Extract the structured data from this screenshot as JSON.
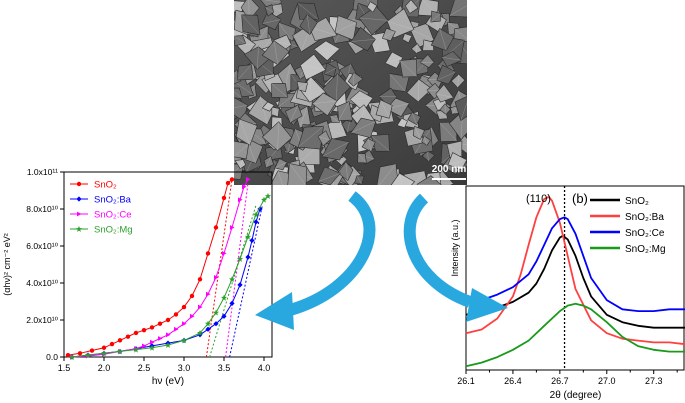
{
  "sem_image": {
    "scale_bar_label": "200 nm"
  },
  "chart_data": [
    {
      "type": "scatter",
      "panel": "tauc-plot",
      "xlabel": "hν (eV)",
      "ylabel": "(αhν)² cm⁻² eV²",
      "xlim": [
        1.5,
        4.1
      ],
      "ylim": [
        0,
        100000000000.0
      ],
      "x_ticks": [
        "1.5",
        "2.0",
        "2.5",
        "3.0",
        "3.5",
        "4.0"
      ],
      "y_ticks": [
        "0.0",
        "2.0x10¹⁰",
        "4.0x10¹⁰",
        "6.0x10¹⁰",
        "8.0x10¹⁰",
        "1.0x10¹¹"
      ],
      "legend_position": "top-left",
      "series": [
        {
          "name": "SnO₂",
          "color": "#ff0000",
          "marker": "circle",
          "x": [
            1.55,
            1.7,
            1.85,
            2.0,
            2.1,
            2.2,
            2.3,
            2.4,
            2.5,
            2.6,
            2.7,
            2.8,
            2.9,
            3.0,
            3.1,
            3.2,
            3.3,
            3.4,
            3.5,
            3.55,
            3.6
          ],
          "y": [
            1000000000.0,
            2000000000.0,
            3500000000.0,
            5000000000.0,
            7000000000.0,
            9000000000.0,
            11000000000.0,
            13000000000.0,
            14500000000.0,
            16000000000.0,
            18000000000.0,
            20000000000.0,
            23000000000.0,
            27000000000.0,
            33000000000.0,
            42000000000.0,
            56000000000.0,
            70000000000.0,
            86000000000.0,
            94000000000.0,
            96000000000.0
          ],
          "tangent": {
            "x": [
              3.28,
              3.6
            ],
            "y": [
              0,
              96000000000.0
            ]
          }
        },
        {
          "name": "SnO₂:Ba",
          "color": "#0000ff",
          "marker": "diamond",
          "x": [
            1.6,
            1.8,
            2.0,
            2.2,
            2.4,
            2.6,
            2.8,
            3.0,
            3.2,
            3.3,
            3.4,
            3.5,
            3.6,
            3.7,
            3.8,
            3.85,
            3.9,
            3.95
          ],
          "y": [
            0.0,
            1000000000.0,
            2000000000.0,
            3000000000.0,
            4500000000.0,
            6000000000.0,
            7500000000.0,
            9000000000.0,
            12000000000.0,
            15000000000.0,
            18000000000.0,
            22000000000.0,
            29000000000.0,
            39000000000.0,
            54000000000.0,
            63000000000.0,
            73000000000.0,
            80000000000.0
          ],
          "tangent": {
            "x": [
              3.57,
              3.98
            ],
            "y": [
              0,
              82000000000.0
            ]
          }
        },
        {
          "name": "SnO₂:Ce",
          "color": "#ff00ff",
          "marker": "triangle",
          "x": [
            1.6,
            1.8,
            2.0,
            2.2,
            2.4,
            2.5,
            2.6,
            2.7,
            2.8,
            2.9,
            3.0,
            3.1,
            3.2,
            3.3,
            3.4,
            3.5,
            3.6,
            3.7,
            3.75,
            3.8
          ],
          "y": [
            0.0,
            500000000.0,
            1500000000.0,
            3000000000.0,
            4500000000.0,
            6000000000.0,
            8000000000.0,
            10000000000.0,
            12000000000.0,
            15000000000.0,
            18000000000.0,
            22000000000.0,
            27000000000.0,
            34000000000.0,
            43000000000.0,
            56000000000.0,
            70000000000.0,
            85000000000.0,
            92000000000.0,
            96000000000.0
          ],
          "tangent": {
            "x": [
              3.52,
              3.8
            ],
            "y": [
              0,
              94000000000.0
            ]
          }
        },
        {
          "name": "SnO₂:Mg",
          "color": "#2ca02c",
          "marker": "star",
          "x": [
            1.6,
            1.8,
            2.0,
            2.2,
            2.4,
            2.6,
            2.8,
            3.0,
            3.2,
            3.3,
            3.4,
            3.5,
            3.6,
            3.7,
            3.8,
            3.9,
            4.0,
            4.05
          ],
          "y": [
            0.0,
            1000000000.0,
            2000000000.0,
            3000000000.0,
            4000000000.0,
            5000000000.0,
            6500000000.0,
            9000000000.0,
            13000000000.0,
            18000000000.0,
            24000000000.0,
            32000000000.0,
            42000000000.0,
            53000000000.0,
            65000000000.0,
            77000000000.0,
            85000000000.0,
            87000000000.0
          ],
          "tangent": {
            "x": [
              3.32,
              3.9
            ],
            "y": [
              0,
              82000000000.0
            ]
          }
        }
      ]
    },
    {
      "type": "line",
      "panel": "xrd-110-peak",
      "panel_label": "(b)",
      "peak_label": "(110)",
      "xlabel": "2θ (degree)",
      "ylabel": "Intensity (a.u.)",
      "xlim": [
        26.1,
        27.5
      ],
      "x_ticks": [
        "26.1",
        "26.4",
        "26.7",
        "27.0",
        "27.3"
      ],
      "reference_line_x": 26.73,
      "legend_position": "top-right",
      "series": [
        {
          "name": "SnO₂",
          "color": "#000000",
          "x": [
            26.1,
            26.2,
            26.3,
            26.4,
            26.5,
            26.55,
            26.6,
            26.65,
            26.7,
            26.72,
            26.75,
            26.8,
            26.85,
            26.9,
            27.0,
            27.1,
            27.2,
            27.3,
            27.4,
            27.5
          ],
          "y": [
            0.3,
            0.32,
            0.34,
            0.37,
            0.42,
            0.47,
            0.55,
            0.65,
            0.72,
            0.73,
            0.71,
            0.62,
            0.5,
            0.4,
            0.3,
            0.26,
            0.24,
            0.23,
            0.23,
            0.23
          ]
        },
        {
          "name": "SnO₂:Ba",
          "color": "#ff4040",
          "x": [
            26.1,
            26.2,
            26.3,
            26.4,
            26.45,
            26.5,
            26.55,
            26.6,
            26.63,
            26.65,
            26.7,
            26.75,
            26.8,
            26.9,
            27.0,
            27.1,
            27.2,
            27.3,
            27.4,
            27.5
          ],
          "y": [
            0.2,
            0.22,
            0.28,
            0.4,
            0.52,
            0.68,
            0.83,
            0.93,
            0.94,
            0.92,
            0.8,
            0.62,
            0.44,
            0.27,
            0.2,
            0.17,
            0.16,
            0.15,
            0.15,
            0.14
          ]
        },
        {
          "name": "SnO₂:Ce",
          "color": "#0000ff",
          "x": [
            26.1,
            26.2,
            26.3,
            26.4,
            26.5,
            26.55,
            26.6,
            26.65,
            26.7,
            26.73,
            26.75,
            26.8,
            26.85,
            26.9,
            27.0,
            27.1,
            27.2,
            27.3,
            27.4,
            27.5
          ],
          "y": [
            0.36,
            0.38,
            0.41,
            0.45,
            0.52,
            0.59,
            0.68,
            0.77,
            0.82,
            0.83,
            0.82,
            0.74,
            0.62,
            0.5,
            0.38,
            0.33,
            0.32,
            0.32,
            0.33,
            0.33
          ]
        },
        {
          "name": "SnO₂:Mg",
          "color": "#1a9a1a",
          "x": [
            26.1,
            26.2,
            26.3,
            26.4,
            26.5,
            26.6,
            26.7,
            26.75,
            26.8,
            26.85,
            26.9,
            27.0,
            27.1,
            27.2,
            27.3,
            27.4,
            27.5
          ],
          "y": [
            0.02,
            0.04,
            0.07,
            0.11,
            0.16,
            0.24,
            0.32,
            0.35,
            0.36,
            0.35,
            0.33,
            0.26,
            0.18,
            0.13,
            0.11,
            0.1,
            0.1
          ]
        }
      ]
    }
  ],
  "colors": {
    "arrow": "#29a8e0",
    "sem_background": "#4a4a4a"
  }
}
